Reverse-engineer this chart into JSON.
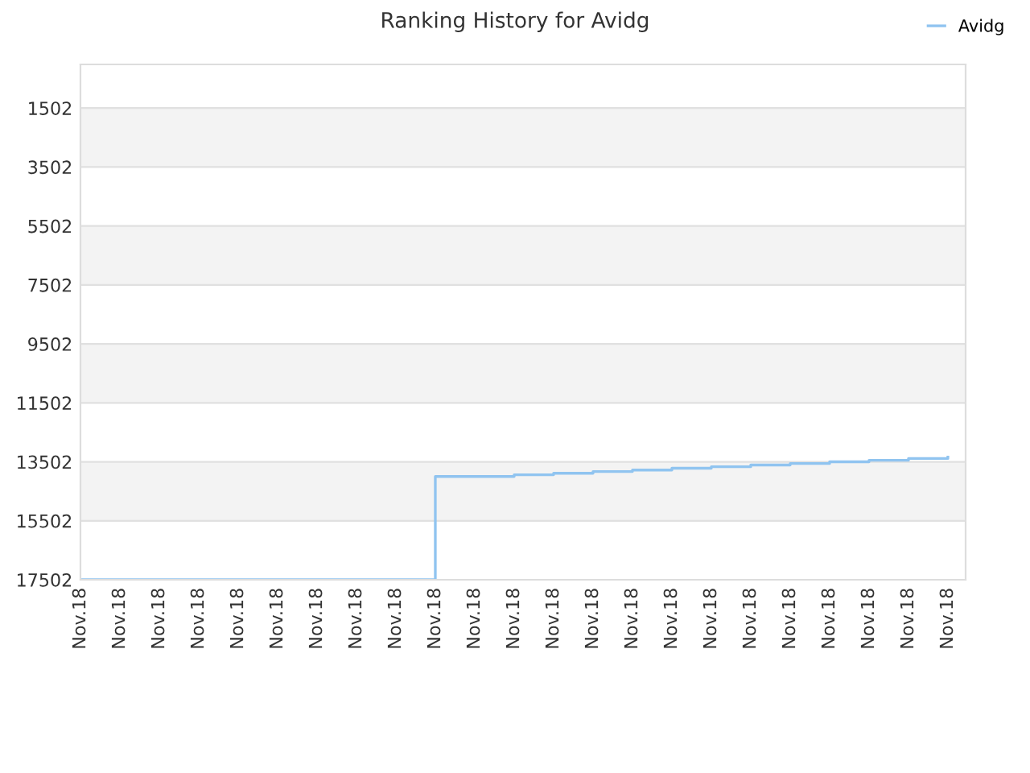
{
  "chart_data": {
    "type": "step",
    "title": "Ranking History for Avidg",
    "categories": [
      "Nov.18",
      "Nov.18",
      "Nov.18",
      "Nov.18",
      "Nov.18",
      "Nov.18",
      "Nov.18",
      "Nov.18",
      "Nov.18",
      "Nov.18",
      "Nov.18",
      "Nov.18",
      "Nov.18",
      "Nov.18",
      "Nov.18",
      "Nov.18",
      "Nov.18",
      "Nov.18",
      "Nov.18",
      "Nov.18",
      "Nov.18",
      "Nov.18",
      "Nov.18"
    ],
    "series": [
      {
        "name": "Avidg",
        "color": "#90c4f0",
        "values": [
          17502,
          17502,
          17502,
          17502,
          17502,
          17502,
          17502,
          17502,
          17502,
          14000,
          14000,
          13940,
          13890,
          13830,
          13780,
          13720,
          13670,
          13610,
          13560,
          13500,
          13450,
          13390,
          13340
        ]
      }
    ],
    "ylim": [
      17502,
      22
    ],
    "yticks": [
      1502,
      3502,
      5502,
      7502,
      9502,
      11502,
      13502,
      15502,
      17502
    ],
    "grid": "y",
    "legend": "top right",
    "line_style": "solid",
    "marker": "none"
  }
}
